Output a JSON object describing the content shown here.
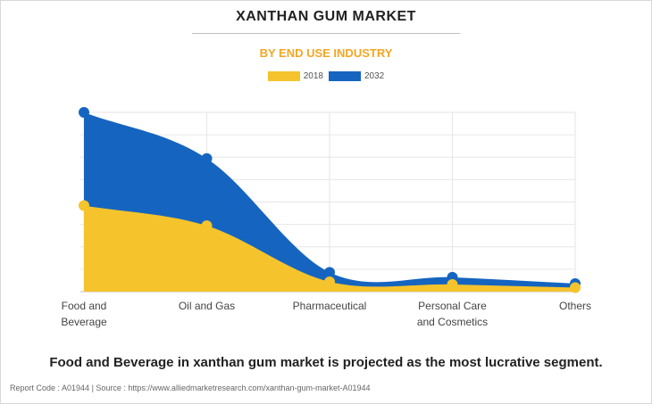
{
  "colors": {
    "series_2018": "#f5c32c",
    "series_2032": "#1565c0",
    "title": "#222222",
    "subtitle": "#f5a623",
    "grid": "#e6e6e6"
  },
  "chart_data": {
    "type": "area",
    "title": "XANTHAN GUM MARKET",
    "subtitle": "BY END USE INDUSTRY",
    "categories": [
      "Food and\nBeverage",
      "Oil and Gas",
      "Pharmaceutical",
      "Personal Care\nand Cosmetics",
      "Others"
    ],
    "series": [
      {
        "name": "2032",
        "values": [
          400,
          297,
          43,
          32,
          18
        ]
      },
      {
        "name": "2018",
        "values": [
          192,
          147,
          22,
          16,
          9
        ]
      }
    ],
    "stacked": false,
    "ylim": [
      0,
      400
    ],
    "grid": true,
    "legend_position": "top-center",
    "xlabel": "",
    "ylabel": ""
  },
  "footnote": "Food and Beverage in xanthan gum market is projected as the most lucrative segment.",
  "source": "Report Code : A01944  |  Source : https://www.alliedmarketresearch.com/xanthan-gum-market-A01944"
}
